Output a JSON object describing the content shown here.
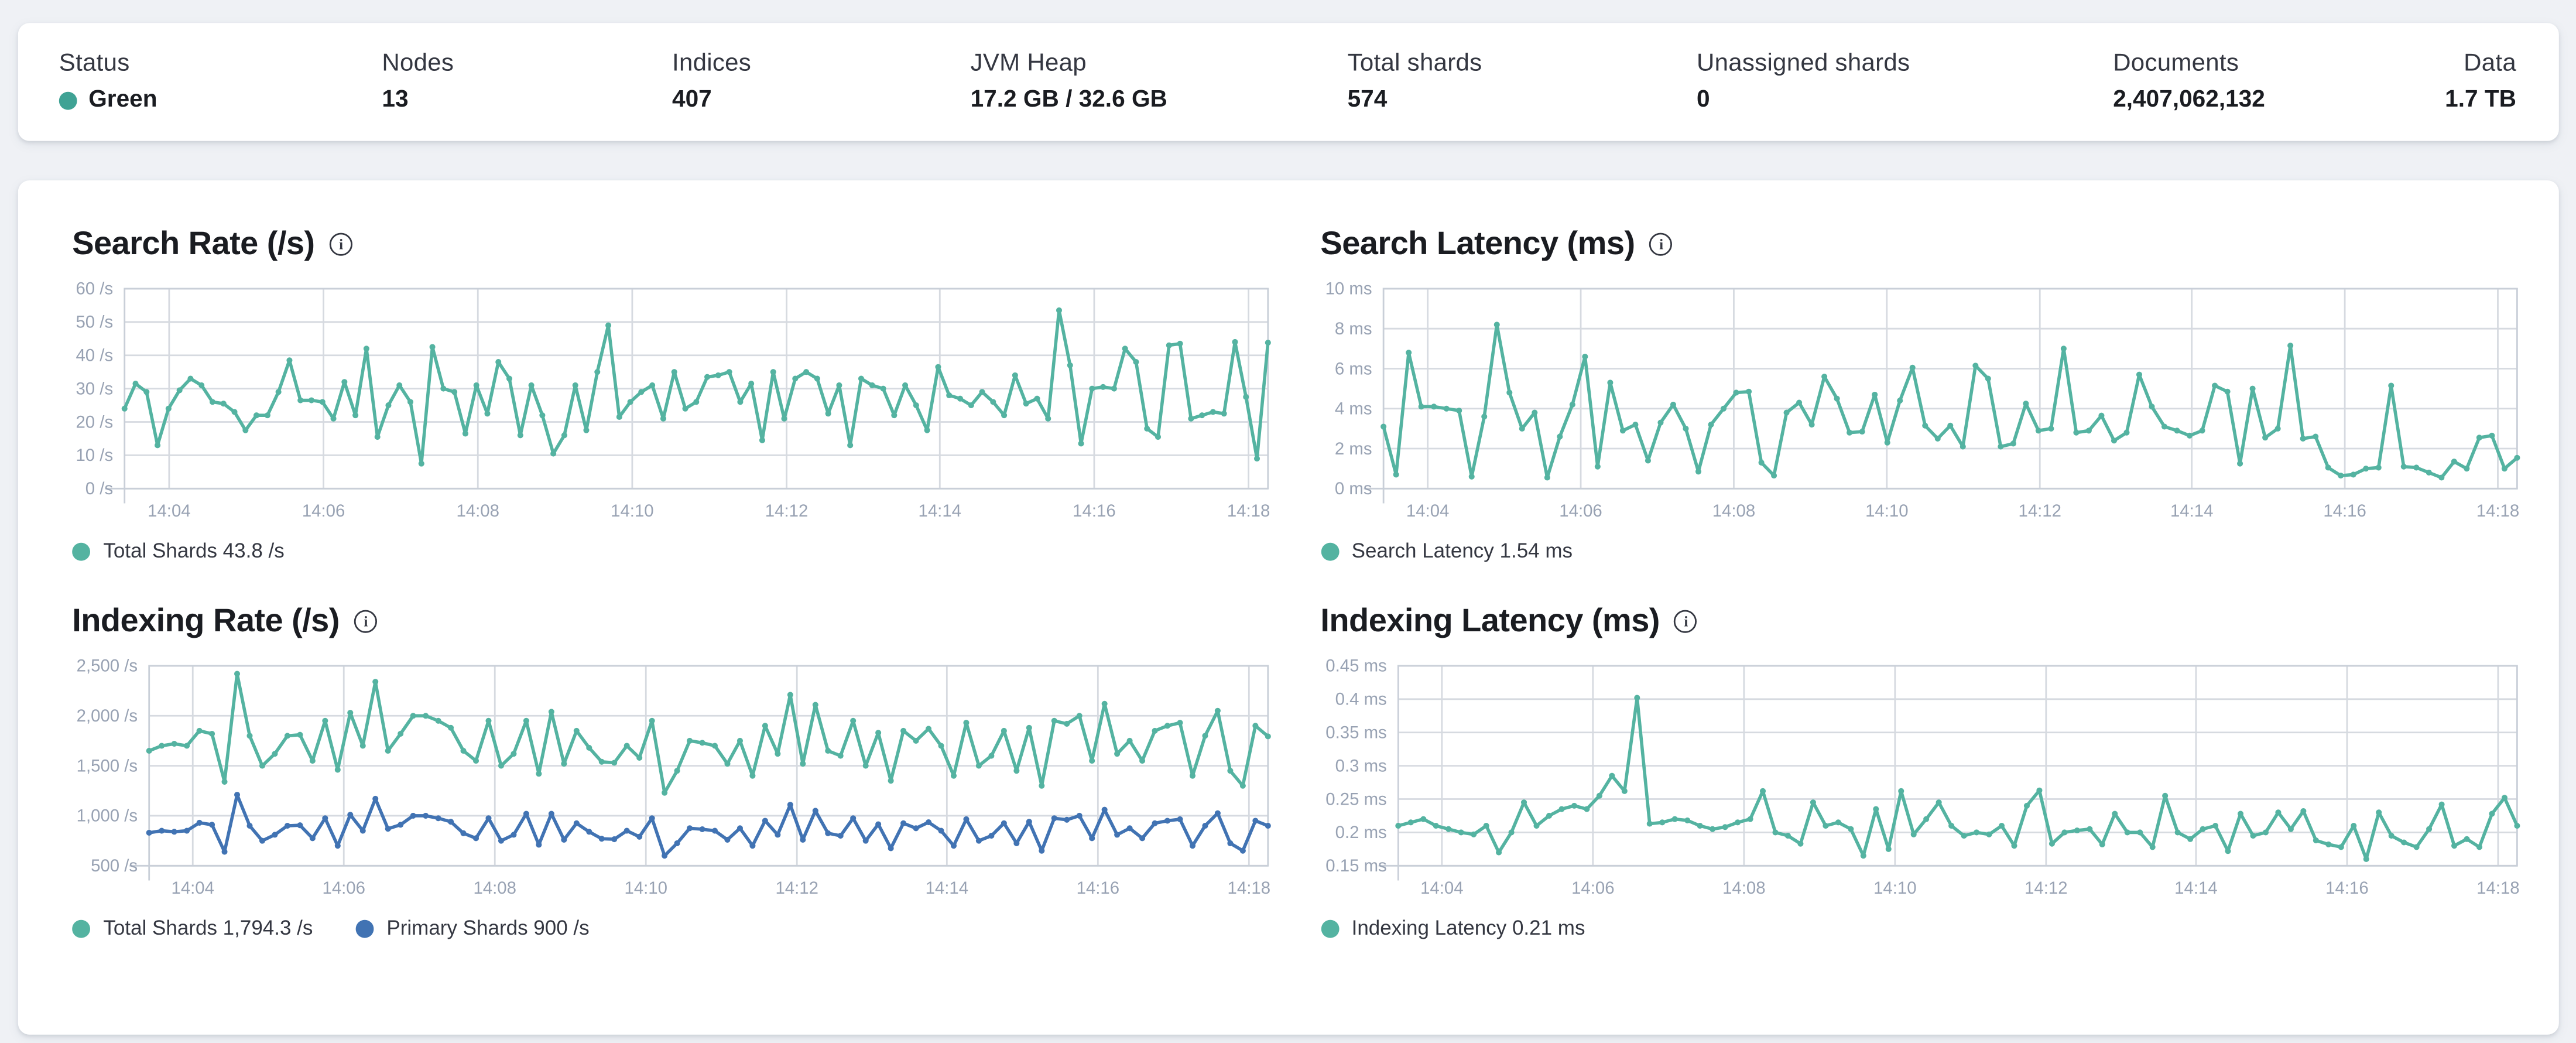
{
  "topbar": {
    "stats": [
      {
        "label": "Status",
        "value": "Green",
        "has_status_dot": true
      },
      {
        "label": "Nodes",
        "value": "13"
      },
      {
        "label": "Indices",
        "value": "407"
      },
      {
        "label": "JVM Heap",
        "value": "17.2 GB / 32.6 GB"
      },
      {
        "label": "Total shards",
        "value": "574"
      },
      {
        "label": "Unassigned shards",
        "value": "0"
      },
      {
        "label": "Documents",
        "value": "2,407,062,132"
      },
      {
        "label": "Data",
        "value": "1.7 TB"
      }
    ]
  },
  "colors": {
    "teal": "#54B3A1",
    "blue": "#4173B3",
    "status_green": "#3FA294",
    "grid": "#D6DAE0",
    "axis": "#C9CFD8",
    "tick_label": "#98A2B3",
    "title_text": "#1A1C21",
    "legend_text": "#343741",
    "page_bg": "#EFF1F5",
    "panel_bg": "#FFFFFF"
  },
  "chart_data": [
    {
      "id": "search-rate",
      "type": "line",
      "title": "Search Rate (/s)",
      "info_icon": "info-icon",
      "ylim": [
        0,
        60
      ],
      "y_ticks": {
        "values": [
          0,
          10,
          20,
          30,
          40,
          50,
          60
        ],
        "labels": [
          "0 /s",
          "10 /s",
          "20 /s",
          "30 /s",
          "40 /s",
          "50 /s",
          "60 /s"
        ]
      },
      "x_ticks": {
        "labels": [
          "14:04",
          "14:06",
          "14:08",
          "14:10",
          "14:12",
          "14:14",
          "14:16",
          "14:18"
        ],
        "fracs": [
          0.039,
          0.174,
          0.309,
          0.444,
          0.579,
          0.713,
          0.848,
          0.983
        ]
      },
      "grid": true,
      "legend_position": "bottom",
      "series": [
        {
          "name": "Total Shards",
          "legend": "Total Shards 43.8 /s",
          "color_key": "teal",
          "values": [
            24,
            31.5,
            29,
            13,
            24,
            29.5,
            33,
            31,
            26,
            25.5,
            23,
            17.5,
            22,
            22,
            29,
            38.5,
            26.5,
            26.5,
            26,
            21,
            32,
            22,
            42,
            15.5,
            25,
            31,
            26,
            7.5,
            42.5,
            30,
            29,
            16.5,
            31,
            22.5,
            38,
            33,
            16,
            31,
            22,
            10.5,
            16,
            31,
            17.5,
            35,
            49,
            21.5,
            26,
            29,
            31,
            21,
            35,
            24,
            26,
            33.5,
            34,
            35,
            26,
            31.5,
            14.5,
            35,
            21,
            33,
            35,
            33,
            22.5,
            31,
            13,
            33,
            31,
            30,
            22,
            31,
            25,
            17.5,
            36.5,
            28,
            27,
            25,
            29,
            26,
            22,
            34,
            25.5,
            27,
            21,
            53.5,
            37,
            13.5,
            30,
            30.5,
            30,
            42,
            38,
            18,
            15.5,
            43,
            43.5,
            21,
            22,
            23,
            22.5,
            44,
            27.5,
            9,
            43.8
          ]
        }
      ]
    },
    {
      "id": "search-latency",
      "type": "line",
      "title": "Search Latency (ms)",
      "info_icon": "info-icon",
      "ylim": [
        0,
        10
      ],
      "y_ticks": {
        "values": [
          0,
          2,
          4,
          6,
          8,
          10
        ],
        "labels": [
          "0 ms",
          "2 ms",
          "4 ms",
          "6 ms",
          "8 ms",
          "10 ms"
        ]
      },
      "x_ticks": {
        "labels": [
          "14:04",
          "14:06",
          "14:08",
          "14:10",
          "14:12",
          "14:14",
          "14:16",
          "14:18"
        ],
        "fracs": [
          0.039,
          0.174,
          0.309,
          0.444,
          0.579,
          0.713,
          0.848,
          0.983
        ]
      },
      "grid": true,
      "legend_position": "bottom",
      "series": [
        {
          "name": "Search Latency",
          "legend": "Search Latency 1.54 ms",
          "color_key": "teal",
          "values": [
            3.1,
            0.7,
            6.8,
            4.1,
            4.1,
            4.0,
            3.9,
            0.6,
            3.6,
            8.2,
            4.8,
            3.0,
            3.8,
            0.55,
            2.6,
            4.2,
            6.6,
            1.1,
            5.3,
            2.9,
            3.2,
            1.4,
            3.3,
            4.2,
            3.0,
            0.85,
            3.2,
            4.0,
            4.8,
            4.85,
            1.3,
            0.65,
            3.8,
            4.3,
            3.2,
            5.6,
            4.5,
            2.8,
            2.85,
            4.7,
            2.3,
            4.4,
            6.05,
            3.15,
            2.5,
            3.15,
            2.1,
            6.15,
            5.5,
            2.1,
            2.25,
            4.25,
            2.9,
            3.0,
            7.0,
            2.8,
            2.9,
            3.65,
            2.4,
            2.8,
            5.7,
            4.1,
            3.1,
            2.9,
            2.65,
            2.9,
            5.15,
            4.85,
            1.25,
            5.0,
            2.55,
            3.0,
            7.15,
            2.5,
            2.6,
            1.05,
            0.65,
            0.7,
            1.0,
            1.05,
            5.15,
            1.1,
            1.05,
            0.8,
            0.55,
            1.35,
            1.0,
            2.55,
            2.65,
            1.0,
            1.54
          ]
        }
      ]
    },
    {
      "id": "indexing-rate",
      "type": "line",
      "title": "Indexing Rate (/s)",
      "info_icon": "info-icon",
      "ylim": [
        500,
        2500
      ],
      "y_ticks": {
        "values": [
          500,
          1000,
          1500,
          2000,
          2500
        ],
        "labels": [
          "500 /s",
          "1,000 /s",
          "1,500 /s",
          "2,000 /s",
          "2,500 /s"
        ]
      },
      "x_ticks": {
        "labels": [
          "14:04",
          "14:06",
          "14:08",
          "14:10",
          "14:12",
          "14:14",
          "14:16",
          "14:18"
        ],
        "fracs": [
          0.039,
          0.174,
          0.309,
          0.444,
          0.579,
          0.713,
          0.848,
          0.983
        ]
      },
      "grid": true,
      "legend_position": "bottom",
      "series": [
        {
          "name": "Total Shards",
          "legend": "Total Shards 1,794.3 /s",
          "color_key": "teal",
          "values": [
            1650,
            1700,
            1720,
            1700,
            1850,
            1820,
            1340,
            2420,
            1800,
            1500,
            1620,
            1800,
            1810,
            1550,
            1950,
            1460,
            2030,
            1700,
            2340,
            1650,
            1820,
            2000,
            2000,
            1950,
            1880,
            1650,
            1550,
            1950,
            1500,
            1620,
            1950,
            1420,
            2040,
            1520,
            1850,
            1680,
            1540,
            1530,
            1700,
            1580,
            1950,
            1230,
            1450,
            1750,
            1730,
            1700,
            1520,
            1750,
            1400,
            1900,
            1620,
            2210,
            1520,
            2110,
            1650,
            1600,
            1950,
            1500,
            1830,
            1350,
            1850,
            1750,
            1870,
            1700,
            1400,
            1930,
            1500,
            1600,
            1850,
            1450,
            1880,
            1300,
            1950,
            1920,
            2000,
            1550,
            2120,
            1620,
            1750,
            1550,
            1850,
            1900,
            1930,
            1400,
            1800,
            2050,
            1450,
            1300,
            1900,
            1794.3
          ]
        },
        {
          "name": "Primary Shards",
          "legend": "Primary Shards 900 /s",
          "color_key": "blue",
          "values": [
            830,
            850,
            840,
            850,
            930,
            910,
            640,
            1210,
            900,
            750,
            810,
            900,
            905,
            775,
            975,
            700,
            1010,
            850,
            1170,
            870,
            910,
            1000,
            1000,
            975,
            940,
            825,
            775,
            975,
            750,
            810,
            1020,
            710,
            1020,
            760,
            925,
            840,
            770,
            765,
            850,
            790,
            975,
            600,
            725,
            875,
            865,
            850,
            760,
            875,
            700,
            950,
            810,
            1110,
            760,
            1050,
            825,
            800,
            975,
            750,
            915,
            675,
            925,
            875,
            935,
            850,
            700,
            965,
            750,
            800,
            925,
            725,
            940,
            650,
            975,
            960,
            1000,
            775,
            1060,
            810,
            875,
            775,
            925,
            950,
            965,
            700,
            900,
            1025,
            725,
            650,
            950,
            900
          ]
        }
      ]
    },
    {
      "id": "indexing-latency",
      "type": "line",
      "title": "Indexing Latency (ms)",
      "info_icon": "info-icon",
      "ylim": [
        0.15,
        0.45
      ],
      "y_ticks": {
        "values": [
          0.15,
          0.2,
          0.25,
          0.3,
          0.35,
          0.4,
          0.45
        ],
        "labels": [
          "0.15 ms",
          "0.2 ms",
          "0.25 ms",
          "0.3 ms",
          "0.35 ms",
          "0.4 ms",
          "0.45 ms"
        ]
      },
      "x_ticks": {
        "labels": [
          "14:04",
          "14:06",
          "14:08",
          "14:10",
          "14:12",
          "14:14",
          "14:16",
          "14:18"
        ],
        "fracs": [
          0.039,
          0.174,
          0.309,
          0.444,
          0.579,
          0.713,
          0.848,
          0.983
        ]
      },
      "grid": true,
      "legend_position": "bottom",
      "series": [
        {
          "name": "Indexing Latency",
          "legend": "Indexing Latency 0.21 ms",
          "color_key": "teal",
          "values": [
            0.21,
            0.215,
            0.22,
            0.21,
            0.205,
            0.2,
            0.197,
            0.21,
            0.17,
            0.2,
            0.245,
            0.21,
            0.225,
            0.235,
            0.24,
            0.235,
            0.255,
            0.285,
            0.262,
            0.402,
            0.213,
            0.215,
            0.22,
            0.218,
            0.21,
            0.205,
            0.208,
            0.215,
            0.22,
            0.262,
            0.2,
            0.195,
            0.183,
            0.245,
            0.21,
            0.215,
            0.205,
            0.165,
            0.235,
            0.175,
            0.262,
            0.197,
            0.22,
            0.245,
            0.21,
            0.195,
            0.2,
            0.197,
            0.21,
            0.18,
            0.24,
            0.263,
            0.183,
            0.2,
            0.203,
            0.205,
            0.182,
            0.228,
            0.2,
            0.2,
            0.178,
            0.255,
            0.2,
            0.19,
            0.205,
            0.21,
            0.172,
            0.228,
            0.195,
            0.2,
            0.23,
            0.205,
            0.232,
            0.188,
            0.182,
            0.178,
            0.21,
            0.16,
            0.23,
            0.195,
            0.185,
            0.178,
            0.205,
            0.242,
            0.18,
            0.19,
            0.178,
            0.228,
            0.252,
            0.21
          ]
        }
      ]
    }
  ]
}
